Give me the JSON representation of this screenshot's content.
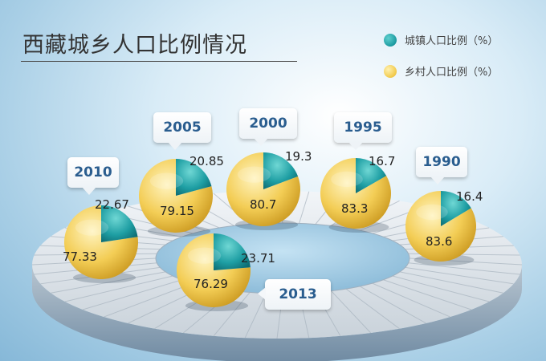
{
  "title": "西藏城乡人口比例情况",
  "legend": [
    {
      "label": "城镇人口比例（%）",
      "color": "#1b9aa0"
    },
    {
      "label": "乡村人口比例（%）",
      "color": "#f1c94a"
    }
  ],
  "chart_data": {
    "type": "pie",
    "title": "西藏城乡人口比例情况",
    "series_names": [
      "城镇人口比例（%）",
      "乡村人口比例（%）"
    ],
    "pies": [
      {
        "year": "1990",
        "urban": 16.4,
        "rural": 83.6
      },
      {
        "year": "1995",
        "urban": 16.7,
        "rural": 83.3
      },
      {
        "year": "2000",
        "urban": 19.3,
        "rural": 80.7
      },
      {
        "year": "2005",
        "urban": 20.85,
        "rural": 79.15
      },
      {
        "year": "2010",
        "urban": 22.67,
        "rural": 77.33
      },
      {
        "year": "2013",
        "urban": 23.71,
        "rural": 76.29
      }
    ],
    "legend_position": "top-right",
    "colors": {
      "urban": "#1b9aa0",
      "rural": "#f1c94a"
    }
  }
}
